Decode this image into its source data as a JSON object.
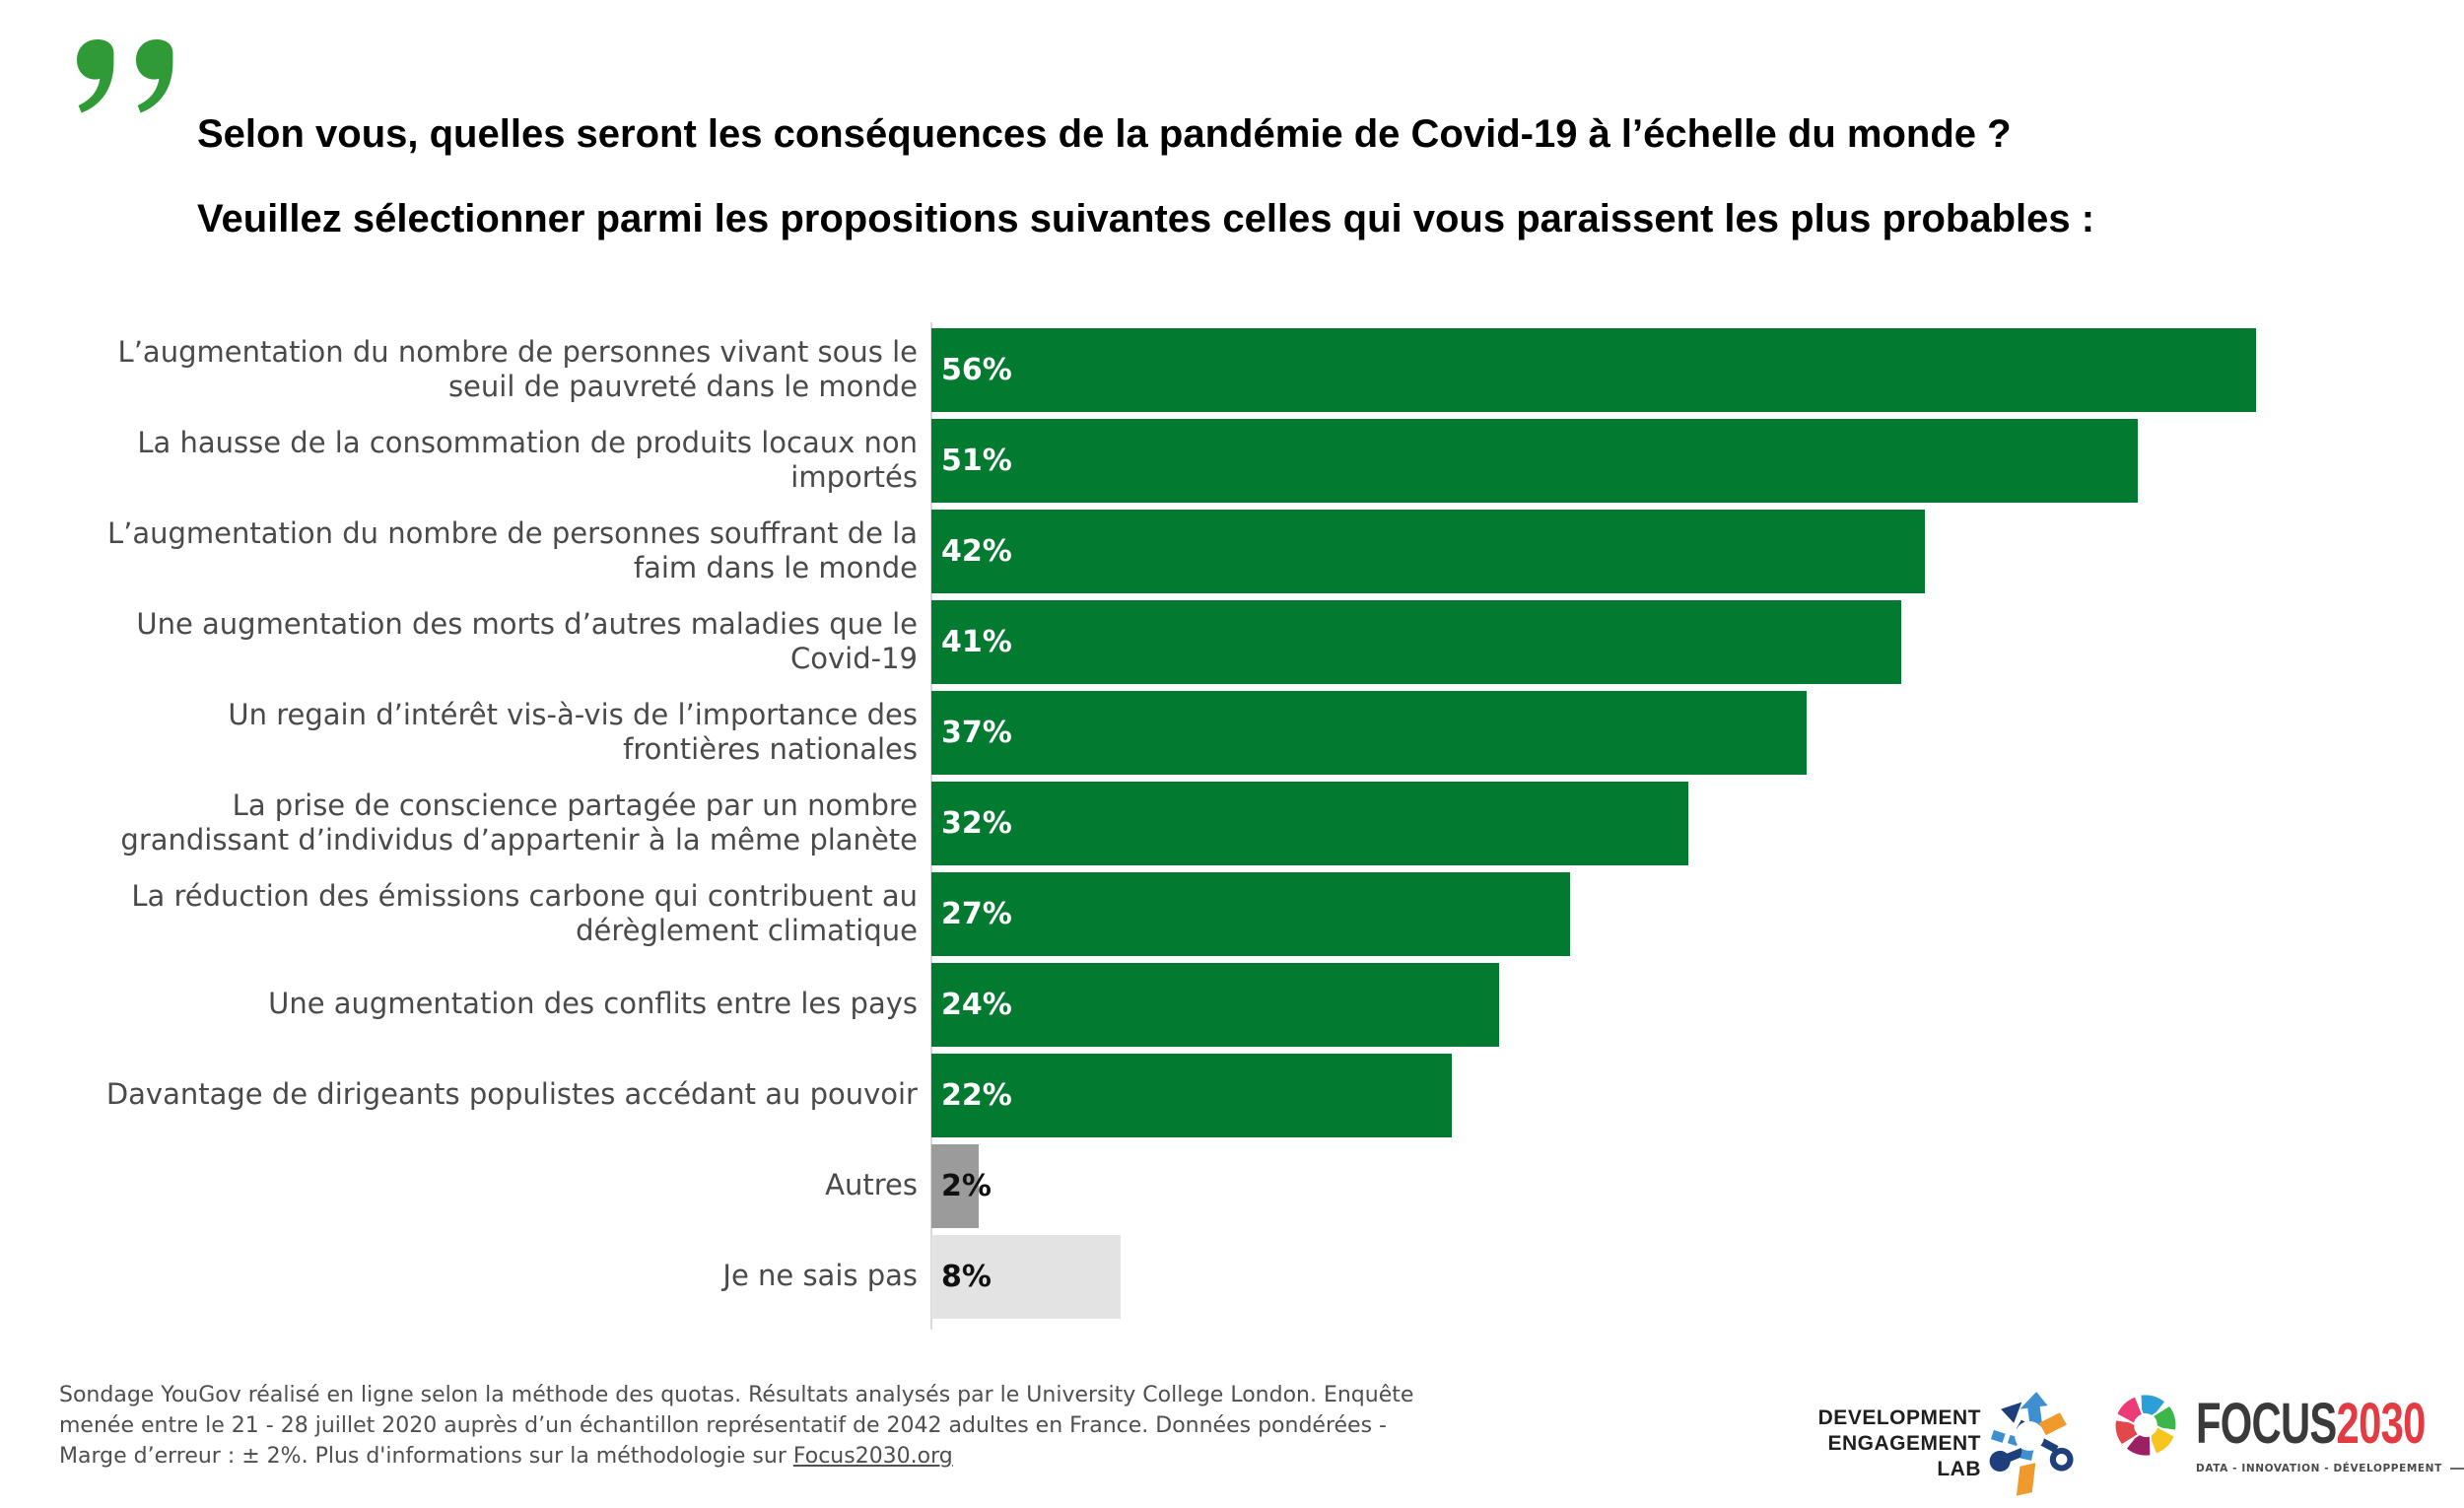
{
  "title": {
    "line1": "Selon vous, quelles seront les conséquences de la pandémie de Covid-19 à l’échelle du monde ?",
    "line2": "Veuillez sélectionner parmi les propositions suivantes celles qui vous paraissent les plus probables :"
  },
  "chart_data": {
    "type": "bar",
    "orientation": "horizontal",
    "unit": "%",
    "xlim": [
      0,
      60
    ],
    "grid": false,
    "legend": false,
    "categories": [
      "L’augmentation du nombre de personnes vivant sous le seuil de pauvreté dans le monde",
      "La hausse de la consommation de produits locaux non importés",
      "L’augmentation du nombre de personnes souffrant de la faim dans le monde",
      "Une augmentation des morts d’autres maladies que le Covid-19",
      "Un regain d’intérêt vis-à-vis de l’importance des frontières nationales",
      "La prise de conscience partagée par un nombre grandissant d’individus d’appartenir à la même planète",
      "La réduction des émissions carbone qui contribuent au dérèglement climatique",
      "Une augmentation des conflits entre les pays",
      "Davantage de dirigeants populistes accédant au pouvoir",
      "Autres",
      "Je ne sais pas"
    ],
    "values": [
      56,
      51,
      42,
      41,
      37,
      32,
      27,
      24,
      22,
      2,
      8
    ],
    "bar_colors": [
      "#027A2F",
      "#027A2F",
      "#027A2F",
      "#027A2F",
      "#027A2F",
      "#027A2F",
      "#027A2F",
      "#027A2F",
      "#027A2F",
      "#9B9B9B",
      "#E3E3E3"
    ],
    "value_label_colors": [
      "#ffffff",
      "#ffffff",
      "#ffffff",
      "#ffffff",
      "#ffffff",
      "#ffffff",
      "#ffffff",
      "#ffffff",
      "#ffffff",
      "#111111",
      "#111111"
    ]
  },
  "footer": {
    "line1": "Sondage YouGov réalisé en ligne selon la méthode des quotas. Résultats analysés par le University College London. Enquête",
    "line2": "menée entre le 21 - 28 juillet 2020 auprès d’un échantillon représentatif de 2042 adultes en France. Données pondérées -",
    "line3_prefix": "Marge d’erreur : ± 2%. Plus d'informations sur la méthodologie sur ",
    "link": "Focus2030.org"
  },
  "logos": {
    "del": {
      "line1": "DEVELOPMENT",
      "line2": "ENGAGEMENT",
      "line3": "LAB"
    },
    "focus": {
      "name_dark": "FOCUS",
      "name_red": "2030",
      "tagline": "DATA - INNOVATION - DÉVELOPPEMENT"
    }
  },
  "colors": {
    "bar_green": "#027A2F",
    "bar_gray_dark": "#9B9B9B",
    "bar_gray_light": "#E3E3E3",
    "quote_green": "#2F9A36",
    "label_gray": "#4A4A4A",
    "axis_gray": "#D9D9D9",
    "focus_red": "#E23B41"
  }
}
